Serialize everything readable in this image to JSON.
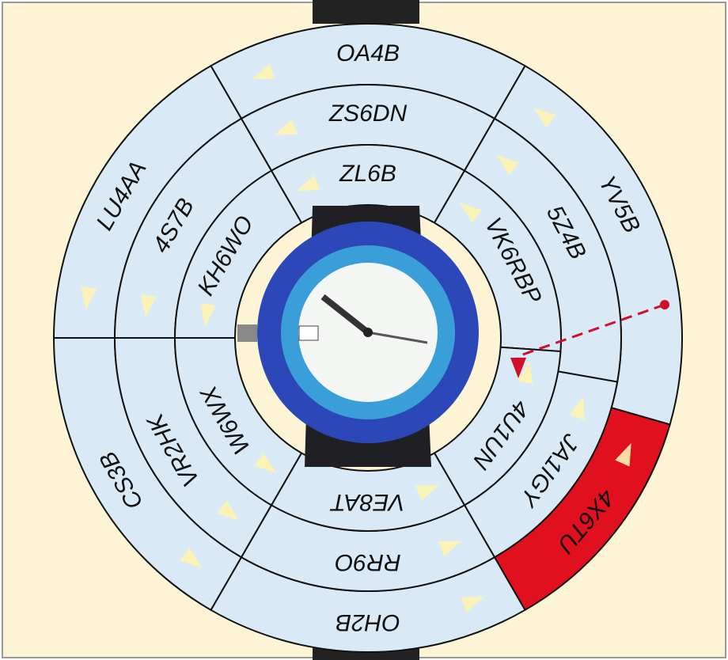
{
  "sectors": [
    {
      "outer": "OA4B",
      "middle": "ZS6DN",
      "inner": "ZL6B"
    },
    {
      "outer": "YV5B",
      "middle": "5Z4B",
      "inner": "VK6RBP"
    },
    {
      "outer": "4X6TU",
      "middle": "JA1IGY",
      "inner": "4U1UN"
    },
    {
      "outer": "OH2B",
      "middle": "RR9O",
      "inner": "VE8AT"
    },
    {
      "outer": "CS3B",
      "middle": "VR2HK",
      "inner": "W6WX"
    },
    {
      "outer": "LU4AA",
      "middle": "4S7B",
      "inner": "KH6WO"
    }
  ]
}
